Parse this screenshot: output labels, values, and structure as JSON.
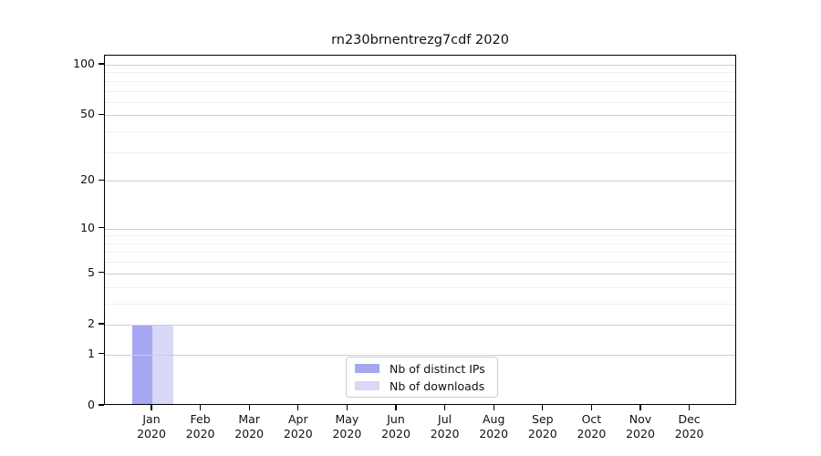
{
  "window": {
    "background": "#ffffff"
  },
  "chart_data": {
    "type": "bar",
    "title": "rn230brnentrezg7cdf 2020",
    "categories": [
      "Jan",
      "Feb",
      "Mar",
      "Apr",
      "May",
      "Jun",
      "Jul",
      "Aug",
      "Sep",
      "Oct",
      "Nov",
      "Dec"
    ],
    "x_year_label": "2020",
    "series": [
      {
        "name": "Nb of distinct IPs",
        "color": "#a6a6f2",
        "values": [
          2,
          0,
          0,
          0,
          0,
          0,
          0,
          0,
          0,
          0,
          0,
          0
        ]
      },
      {
        "name": "Nb of downloads",
        "color": "#d8d8f7",
        "values": [
          2,
          0,
          0,
          0,
          0,
          0,
          0,
          0,
          0,
          0,
          0,
          0
        ]
      }
    ],
    "y_axis": {
      "scale": "log1p",
      "ticks": [
        0,
        1,
        2,
        5,
        10,
        20,
        50,
        100
      ],
      "minor_ticks": [
        3,
        4,
        6,
        7,
        8,
        9,
        30,
        40,
        60,
        70,
        80,
        90
      ],
      "range": [
        0,
        113
      ]
    },
    "x_axis": {
      "label_line2": "2020"
    },
    "legend": {
      "position": "lower center"
    },
    "grid": true,
    "colors": {
      "spine": "#000000",
      "major_grid": "#cfcfcf",
      "minor_grid": "#efefef",
      "text": "#111111"
    }
  }
}
